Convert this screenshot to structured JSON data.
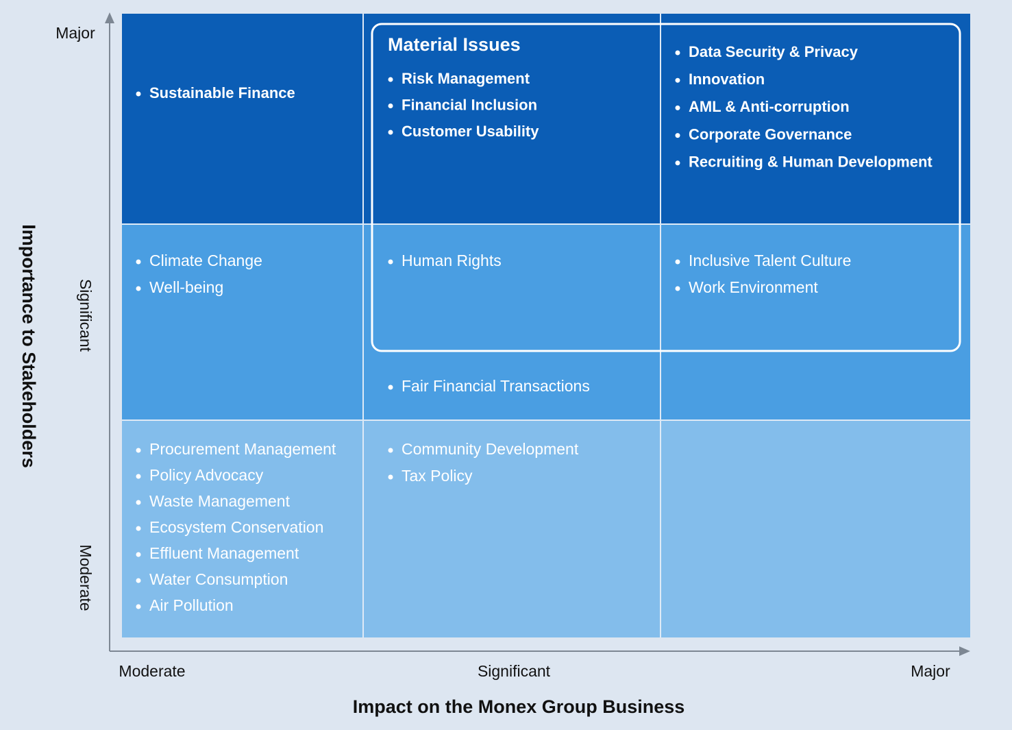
{
  "material_box": {
    "title": "Material Issues"
  },
  "axes": {
    "y_title": "Importance to Stakeholders",
    "x_title": "Impact on the Monex Group Business",
    "y_levels": [
      "Major",
      "Significant",
      "Moderate"
    ],
    "x_levels": [
      "Moderate",
      "Significant",
      "Major"
    ]
  },
  "groups": [
    {
      "items": [
        "Sustainable Finance"
      ]
    },
    {
      "items": [
        "Risk Management",
        "Financial Inclusion",
        "Customer Usability"
      ]
    },
    {
      "items": [
        "Data Security & Privacy",
        "Innovation",
        "AML & Anti-corruption",
        "Corporate Governance",
        "Recruiting & Human Development"
      ]
    },
    {
      "items": [
        "Climate Change",
        "Well-being"
      ]
    },
    {
      "items": [
        "Human Rights"
      ]
    },
    {
      "items": [
        "Fair Financial Transactions"
      ]
    },
    {
      "items": [
        "Inclusive Talent Culture",
        "Work Environment"
      ]
    },
    {
      "items": [
        "Procurement Management",
        "Policy Advocacy",
        "Waste Management",
        "Ecosystem Conservation",
        "Effluent Management",
        "Water Consumption",
        "Air Pollution"
      ]
    },
    {
      "items": [
        "Community Development",
        "Tax Policy"
      ]
    }
  ]
}
